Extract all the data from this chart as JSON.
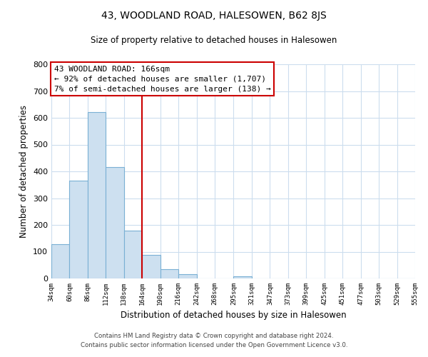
{
  "title": "43, WOODLAND ROAD, HALESOWEN, B62 8JS",
  "subtitle": "Size of property relative to detached houses in Halesowen",
  "xlabel": "Distribution of detached houses by size in Halesowen",
  "ylabel": "Number of detached properties",
  "bar_edges": [
    34,
    60,
    86,
    112,
    138,
    164,
    190,
    216,
    242,
    268,
    295,
    321,
    347,
    373,
    399,
    425,
    451,
    477,
    503,
    529,
    555
  ],
  "bar_heights": [
    128,
    365,
    622,
    415,
    178,
    88,
    36,
    15,
    0,
    0,
    8,
    0,
    0,
    0,
    0,
    0,
    0,
    0,
    0,
    0
  ],
  "bar_color": "#cde0f0",
  "bar_edge_color": "#7ab0d4",
  "vline_x": 164,
  "vline_color": "#cc0000",
  "ylim": [
    0,
    800
  ],
  "yticks": [
    0,
    100,
    200,
    300,
    400,
    500,
    600,
    700,
    800
  ],
  "annotation_title": "43 WOODLAND ROAD: 166sqm",
  "annotation_line1": "← 92% of detached houses are smaller (1,707)",
  "annotation_line2": "7% of semi-detached houses are larger (138) →",
  "footer_line1": "Contains HM Land Registry data © Crown copyright and database right 2024.",
  "footer_line2": "Contains public sector information licensed under the Open Government Licence v3.0.",
  "tick_labels": [
    "34sqm",
    "60sqm",
    "86sqm",
    "112sqm",
    "138sqm",
    "164sqm",
    "190sqm",
    "216sqm",
    "242sqm",
    "268sqm",
    "295sqm",
    "321sqm",
    "347sqm",
    "373sqm",
    "399sqm",
    "425sqm",
    "451sqm",
    "477sqm",
    "503sqm",
    "529sqm",
    "555sqm"
  ],
  "grid_color": "#ccddee",
  "background_color": "#ffffff"
}
